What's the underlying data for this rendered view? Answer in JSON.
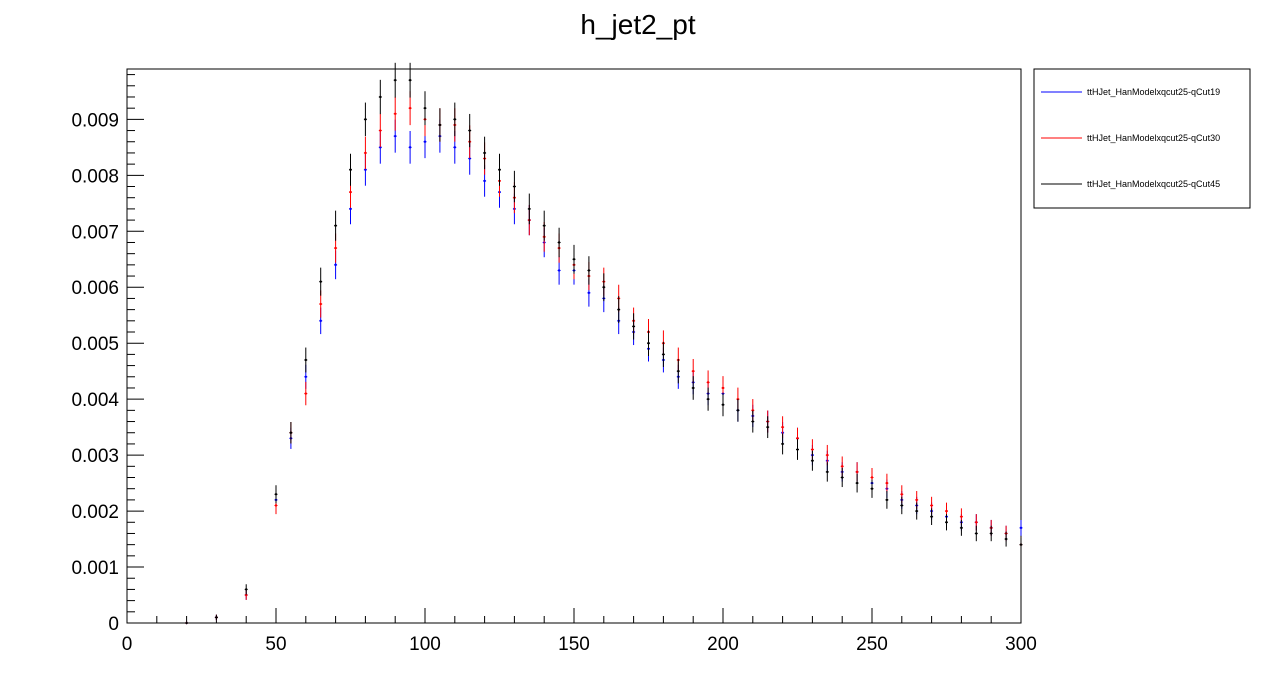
{
  "chart_data": {
    "type": "scatter",
    "title": "h_jet2_pt",
    "xlabel": "",
    "ylabel": "",
    "xlim": [
      0,
      300
    ],
    "ylim": [
      0,
      0.0099
    ],
    "x_ticks": [
      0,
      50,
      100,
      150,
      200,
      250,
      300
    ],
    "x_tick_labels": [
      "0",
      "50",
      "100",
      "150",
      "200",
      "250",
      "300"
    ],
    "y_ticks": [
      0,
      0.001,
      0.002,
      0.003,
      0.004,
      0.005,
      0.006,
      0.007,
      0.008,
      0.009
    ],
    "y_tick_labels": [
      "0",
      "0.001",
      "0.002",
      "0.003",
      "0.004",
      "0.005",
      "0.006",
      "0.007",
      "0.008",
      "0.009"
    ],
    "grid": false,
    "legend_position": "right, outside top",
    "bin_width": 1,
    "series": [
      {
        "name": "ttHJet_HanModelxqcut25-qCut19",
        "color": "#0000ff",
        "x": [
          20,
          30,
          40,
          50,
          55,
          60,
          65,
          70,
          75,
          80,
          85,
          90,
          95,
          100,
          105,
          110,
          115,
          120,
          125,
          130,
          135,
          140,
          145,
          150,
          155,
          160,
          165,
          170,
          175,
          180,
          185,
          190,
          195,
          200,
          205,
          210,
          215,
          220,
          225,
          230,
          235,
          240,
          245,
          250,
          255,
          260,
          265,
          270,
          275,
          280,
          285,
          290,
          295,
          300
        ],
        "y": [
          0.0,
          0.0001,
          0.0005,
          0.0022,
          0.0033,
          0.0044,
          0.0054,
          0.0064,
          0.0074,
          0.0081,
          0.0085,
          0.0087,
          0.0085,
          0.0086,
          0.0087,
          0.0085,
          0.0083,
          0.0079,
          0.0077,
          0.0074,
          0.0072,
          0.0068,
          0.0063,
          0.0063,
          0.0059,
          0.0058,
          0.0054,
          0.0052,
          0.0049,
          0.0047,
          0.0044,
          0.0043,
          0.0041,
          0.0041,
          0.0038,
          0.0037,
          0.0036,
          0.0034,
          0.0033,
          0.003,
          0.0029,
          0.0027,
          0.0027,
          0.0025,
          0.0024,
          0.0022,
          0.0021,
          0.002,
          0.0019,
          0.0018,
          0.0018,
          0.0017,
          0.0016,
          0.0017
        ]
      },
      {
        "name": "ttHJet_HanModelxqcut25-qCut30",
        "color": "#ff0000",
        "x": [
          20,
          30,
          40,
          50,
          55,
          60,
          65,
          70,
          75,
          80,
          85,
          90,
          95,
          100,
          105,
          110,
          115,
          120,
          125,
          130,
          135,
          140,
          145,
          150,
          155,
          160,
          165,
          170,
          175,
          180,
          185,
          190,
          195,
          200,
          205,
          210,
          215,
          220,
          225,
          230,
          235,
          240,
          245,
          250,
          255,
          260,
          265,
          270,
          275,
          280,
          285,
          290,
          295,
          300
        ],
        "y": [
          0.0,
          0.0001,
          0.0005,
          0.0021,
          0.0034,
          0.0041,
          0.0057,
          0.0067,
          0.0077,
          0.0084,
          0.0088,
          0.0091,
          0.0092,
          0.009,
          0.0089,
          0.0089,
          0.0086,
          0.0083,
          0.0079,
          0.0076,
          0.0072,
          0.0069,
          0.0067,
          0.0064,
          0.0062,
          0.0061,
          0.0058,
          0.0054,
          0.0052,
          0.005,
          0.0047,
          0.0045,
          0.0043,
          0.0042,
          0.004,
          0.0038,
          0.0036,
          0.0035,
          0.0033,
          0.0031,
          0.003,
          0.0028,
          0.0027,
          0.0026,
          0.0025,
          0.0023,
          0.0022,
          0.0021,
          0.002,
          0.0019,
          0.0018,
          0.0017,
          0.0016,
          0.0014
        ]
      },
      {
        "name": "ttHJet_HanModelxqcut25-qCut45",
        "color": "#000000",
        "x": [
          20,
          30,
          40,
          50,
          55,
          60,
          65,
          70,
          75,
          80,
          85,
          90,
          95,
          100,
          105,
          110,
          115,
          120,
          125,
          130,
          135,
          140,
          145,
          150,
          155,
          160,
          165,
          170,
          175,
          180,
          185,
          190,
          195,
          200,
          205,
          210,
          215,
          220,
          225,
          230,
          235,
          240,
          245,
          250,
          255,
          260,
          265,
          270,
          275,
          280,
          285,
          290,
          295,
          300
        ],
        "y": [
          0.0,
          0.0001,
          0.0006,
          0.0023,
          0.0034,
          0.0047,
          0.0061,
          0.0071,
          0.0081,
          0.009,
          0.0094,
          0.0097,
          0.0097,
          0.0092,
          0.0089,
          0.009,
          0.0088,
          0.0084,
          0.0081,
          0.0078,
          0.0074,
          0.0071,
          0.0068,
          0.0065,
          0.0063,
          0.006,
          0.0056,
          0.0053,
          0.005,
          0.0048,
          0.0045,
          0.0042,
          0.004,
          0.0039,
          0.0038,
          0.0036,
          0.0035,
          0.0032,
          0.0031,
          0.0029,
          0.0027,
          0.0026,
          0.0025,
          0.0024,
          0.0022,
          0.0021,
          0.002,
          0.0019,
          0.0018,
          0.0017,
          0.0016,
          0.0016,
          0.0015,
          0.0014
        ]
      }
    ]
  }
}
